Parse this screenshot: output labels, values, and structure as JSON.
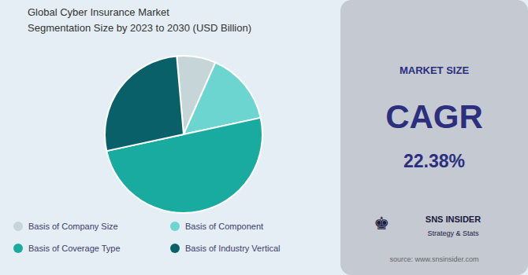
{
  "chart_data": {
    "type": "pie",
    "title": "Global Cyber Insurance Market",
    "subtitle": "Segmentation Size by 2023 to 2030 (USD Billion)",
    "categories": [
      "Basis of Company Size",
      "Basis of Component",
      "Basis of Coverage Type",
      "Basis of Industry Vertical"
    ],
    "values": [
      8,
      15,
      50,
      27
    ],
    "colors": [
      "#c5d5d8",
      "#6dd5d0",
      "#1aaba0",
      "#0a6068"
    ],
    "legend": "bottom",
    "annotations": [
      "MARKET SIZE",
      "CAGR",
      "22.38%",
      "♚",
      "SNS INSIDER",
      "Strategy & Stats",
      "source: www.snsinsider.com"
    ]
  }
}
